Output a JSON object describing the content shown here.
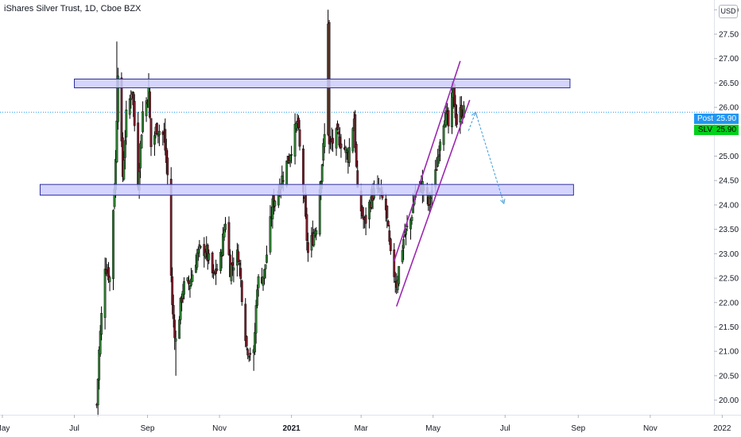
{
  "header": {
    "title": "iShares Silver Trust, 1D, Cboe BZX",
    "currency": "USD"
  },
  "price_tags": {
    "post_label": "Post",
    "post_value": "25.90",
    "ticker_label": "SLV",
    "ticker_value": "25.90"
  },
  "colors": {
    "up": "#2e7d32",
    "down": "#7a1c2a",
    "zone_fill": "#ccccff",
    "zone_stroke": "#2f2fa0",
    "channel": "#9c27b0",
    "projection": "#3d9ad9",
    "post_tag": "#2196f3",
    "ticker_tag": "#00d11a"
  },
  "chart_data": {
    "type": "candlestick",
    "title": "iShares Silver Trust, 1D, Cboe BZX",
    "y_axis": {
      "min": 19.7,
      "max": 28.2,
      "ticks": [
        "20.00",
        "20.50",
        "21.00",
        "21.50",
        "22.00",
        "22.50",
        "23.00",
        "23.50",
        "24.00",
        "24.50",
        "25.00",
        "25.50",
        "26.00",
        "26.50",
        "27.00",
        "27.50",
        "28.00"
      ]
    },
    "x_axis": {
      "start": "2020-04-29",
      "end": "2021-12-25",
      "ticks": [
        {
          "label": "May",
          "date": "2020-05-01"
        },
        {
          "label": "Jul",
          "date": "2020-07-01"
        },
        {
          "label": "Sep",
          "date": "2020-09-01"
        },
        {
          "label": "Nov",
          "date": "2020-11-01"
        },
        {
          "label": "2021",
          "date": "2021-01-01"
        },
        {
          "label": "Mar",
          "date": "2021-03-01"
        },
        {
          "label": "May",
          "date": "2021-05-01"
        },
        {
          "label": "Jul",
          "date": "2021-07-01"
        },
        {
          "label": "Sep",
          "date": "2021-09-01"
        },
        {
          "label": "Nov",
          "date": "2021-11-01"
        },
        {
          "label": "2022",
          "date": "2022-01-01"
        }
      ]
    },
    "last_price": 25.9,
    "key_points": [
      {
        "date": "2020-07-21",
        "low": 19.7,
        "high": 20.0
      },
      {
        "date": "2020-08-06",
        "high": 27.35
      },
      {
        "date": "2020-09-02",
        "high": 26.7
      },
      {
        "date": "2020-09-25",
        "low": 20.5
      },
      {
        "date": "2020-11-30",
        "low": 20.6
      },
      {
        "date": "2021-02-01",
        "open": 27.8,
        "high": 28.0,
        "close": 26.3
      },
      {
        "date": "2021-03-30",
        "low": 22.2
      },
      {
        "date": "2021-05-18",
        "high": 26.5
      },
      {
        "date": "2021-05-27",
        "close": 25.9
      }
    ],
    "annotations": {
      "resistance_zone": {
        "from": "2020-07-01",
        "to": "2021-08-25",
        "low": 26.4,
        "high": 26.58
      },
      "support_zone": {
        "from": "2020-06-02",
        "to": "2021-08-28",
        "low": 24.2,
        "high": 24.42
      },
      "rising_channel_lower": {
        "from": {
          "date": "2021-03-31",
          "price": 21.92
        },
        "to": {
          "date": "2021-06-01",
          "price": 26.15
        }
      },
      "rising_channel_upper": {
        "from": {
          "date": "2021-03-29",
          "price": 22.85
        },
        "to": {
          "date": "2021-05-24",
          "price": 26.95
        }
      },
      "projection_path": [
        {
          "date": "2021-05-31",
          "price": 25.52
        },
        {
          "date": "2021-06-06",
          "price": 25.9
        },
        {
          "date": "2021-06-30",
          "price": 24.03
        }
      ]
    }
  }
}
